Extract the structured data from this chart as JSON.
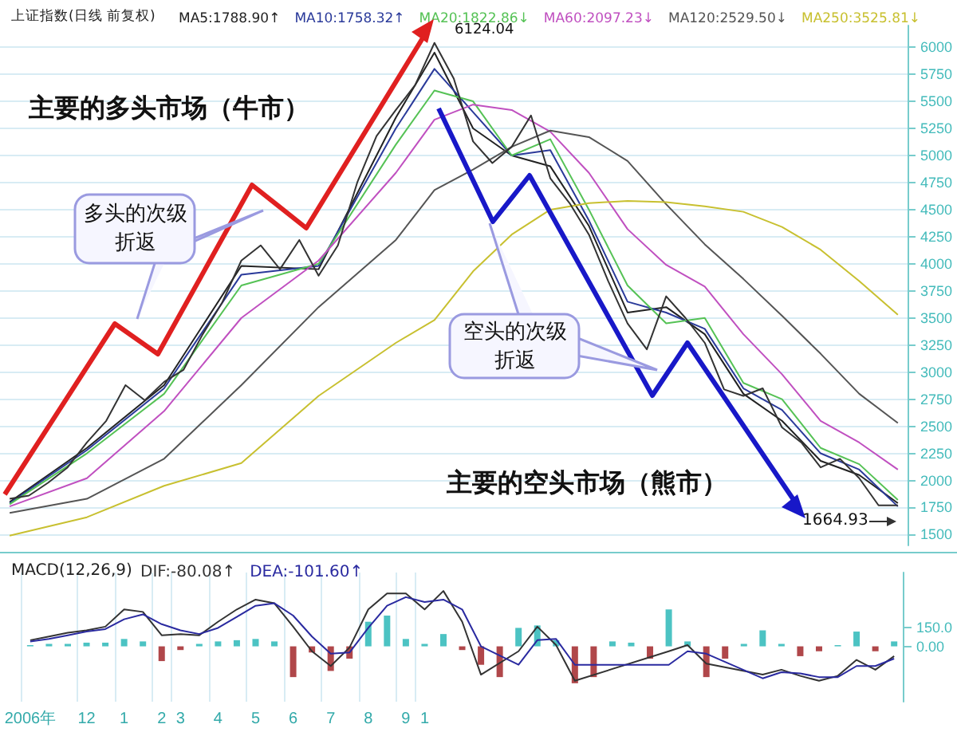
{
  "chart_data": [
    {
      "type": "line",
      "title": "上证指数(日线 前复权)",
      "categories": [
        null,
        null,
        null,
        null,
        null,
        null,
        null,
        null,
        null,
        null,
        null,
        null,
        null,
        null,
        null,
        null,
        null,
        null,
        null,
        null,
        null,
        null,
        null,
        null,
        null,
        null,
        null,
        null,
        null,
        null,
        null,
        null,
        null,
        null,
        null,
        null,
        null,
        null,
        null,
        null,
        null,
        null,
        null,
        null,
        null,
        null,
        null
      ],
      "series": [
        {
          "color": "#333333",
          "values": [
            1830,
            1860,
            1980,
            2120,
            2350,
            2550,
            2880,
            2740,
            2910,
            3020,
            3350,
            3640,
            4030,
            4170,
            3950,
            4220,
            3890,
            4170,
            4750,
            5180,
            5420,
            5650,
            6040,
            5710,
            5130,
            4930,
            5080,
            5370,
            4790,
            4560,
            4270,
            3840,
            3450,
            3210,
            3700,
            3500,
            3270,
            2840,
            2780,
            2850,
            2490,
            2350,
            2120,
            2200,
            2020,
            1770,
            1770
          ]
        },
        {
          "name": "MA5:1788.90↑",
          "color": "#222222",
          "values": [
            1800,
            null,
            null,
            null,
            2300,
            null,
            null,
            null,
            2880,
            null,
            null,
            null,
            3980,
            null,
            null,
            null,
            3950,
            null,
            null,
            null,
            5350,
            null,
            5950,
            null,
            5250,
            null,
            5000,
            null,
            4900,
            null,
            4350,
            null,
            3550,
            null,
            3600,
            null,
            3350,
            null,
            2800,
            null,
            2550,
            null,
            2180,
            null,
            2050,
            null,
            1790
          ]
        },
        {
          "name": "MA10:1758.32↑",
          "color": "#2a3a9a",
          "values": [
            1790,
            null,
            null,
            null,
            2280,
            null,
            null,
            null,
            2850,
            null,
            null,
            null,
            3900,
            null,
            null,
            null,
            3980,
            null,
            null,
            null,
            5250,
            null,
            5800,
            null,
            5400,
            null,
            5000,
            null,
            5050,
            null,
            4400,
            null,
            3650,
            null,
            3550,
            null,
            3400,
            null,
            2850,
            null,
            2650,
            null,
            2250,
            null,
            2100,
            null,
            1760
          ]
        },
        {
          "name": "MA20:1822.86↓",
          "color": "#55c255",
          "values": [
            1780,
            null,
            null,
            null,
            2250,
            null,
            null,
            null,
            2800,
            null,
            null,
            null,
            3800,
            null,
            null,
            null,
            4000,
            null,
            null,
            null,
            5100,
            null,
            5600,
            null,
            5500,
            null,
            5000,
            null,
            5150,
            null,
            4500,
            null,
            3800,
            null,
            3450,
            null,
            3500,
            null,
            2900,
            null,
            2750,
            null,
            2300,
            null,
            2150,
            null,
            1820
          ]
        },
        {
          "name": "MA60:2097.23↓",
          "color": "#c050c0",
          "values": [
            1760,
            null,
            null,
            null,
            2020,
            null,
            null,
            null,
            2640,
            null,
            null,
            null,
            3500,
            null,
            null,
            null,
            4030,
            null,
            null,
            null,
            4840,
            null,
            5330,
            null,
            5470,
            null,
            5420,
            null,
            5220,
            null,
            4840,
            null,
            4320,
            null,
            3990,
            null,
            3790,
            null,
            3350,
            null,
            2980,
            null,
            2550,
            null,
            2350,
            null,
            2100
          ]
        },
        {
          "name": "MA120:2529.50↓",
          "color": "#555555",
          "values": [
            1700,
            null,
            null,
            null,
            1830,
            null,
            null,
            null,
            2200,
            null,
            null,
            null,
            2880,
            null,
            null,
            null,
            3600,
            null,
            null,
            null,
            4220,
            null,
            4680,
            null,
            4870,
            null,
            5080,
            null,
            5230,
            null,
            5170,
            null,
            4950,
            null,
            4550,
            null,
            4180,
            null,
            3860,
            null,
            3520,
            null,
            3170,
            null,
            2800,
            null,
            2530
          ]
        },
        {
          "name": "MA250:3525.81↓",
          "color": "#c8c030",
          "values": [
            1490,
            null,
            null,
            null,
            1660,
            null,
            null,
            null,
            1950,
            null,
            null,
            null,
            2160,
            null,
            null,
            null,
            2780,
            null,
            null,
            null,
            3270,
            null,
            3480,
            null,
            3930,
            null,
            4270,
            null,
            4500,
            null,
            4560,
            null,
            4580,
            null,
            4570,
            null,
            4530,
            null,
            4480,
            null,
            4340,
            null,
            4130,
            null,
            3840,
            null,
            3530
          ]
        }
      ],
      "ylim": [
        1400,
        6200
      ],
      "yticks": [
        1500,
        1750,
        2000,
        2250,
        2500,
        2750,
        3000,
        3250,
        3500,
        3750,
        4000,
        4250,
        4500,
        4750,
        5000,
        5250,
        5500,
        5750,
        6000
      ],
      "grid": true,
      "legend": "top",
      "marker": "none",
      "annotations": [
        "主要的多头市场（牛市）",
        "多头的次级折返",
        "空头的次级折返",
        "主要的空头市场（熊市）",
        "6124.04",
        "1664.93"
      ]
    },
    {
      "type": "line",
      "title": "MACD(12,26,9)",
      "categories": [
        "2006年",
        null,
        null,
        "12",
        null,
        "1",
        null,
        "2",
        "3",
        null,
        "4",
        null,
        "5",
        null,
        "6",
        null,
        "7",
        null,
        "8",
        null,
        "9",
        "1",
        null,
        null,
        null,
        null,
        null,
        null,
        null,
        null,
        null,
        null,
        null,
        null,
        null,
        null,
        null,
        null,
        null,
        null,
        null,
        null,
        null,
        null,
        null,
        null,
        null
      ],
      "series": [
        {
          "type": "bar",
          "colors": [
            "#4cc3c3",
            "#4cc3c3",
            "#4cc3c3",
            "#4cc3c3",
            "#4cc3c3",
            "#4cc3c3",
            "#4cc3c3",
            "#b0474a",
            "#b0474a",
            "#4cc3c3",
            "#4cc3c3",
            "#4cc3c3",
            "#4cc3c3",
            "#4cc3c3",
            "#b0474a",
            "#b0474a",
            "#b0474a",
            "#b0474a",
            "#4cc3c3",
            "#4cc3c3",
            "#4cc3c3",
            "#4cc3c3",
            "#4cc3c3",
            "#b0474a",
            "#b0474a",
            "#b0474a",
            "#4cc3c3",
            "#4cc3c3",
            "#4cc3c3",
            "#b0474a",
            "#b0474a",
            "#4cc3c3",
            "#4cc3c3",
            "#b0474a",
            "#4cc3c3",
            "#4cc3c3",
            "#b0474a",
            "#b0474a",
            "#4cc3c3",
            "#4cc3c3",
            "#4cc3c3",
            "#b0474a",
            "#b0474a",
            "#4cc3c3",
            "#4cc3c3",
            "#b0474a",
            "#4cc3c3"
          ],
          "values": [
            10,
            20,
            20,
            30,
            30,
            60,
            40,
            -120,
            -30,
            20,
            40,
            50,
            60,
            40,
            -250,
            -50,
            -200,
            -100,
            200,
            250,
            60,
            20,
            100,
            -30,
            -150,
            -250,
            150,
            170,
            50,
            -300,
            -250,
            40,
            30,
            -100,
            300,
            40,
            -250,
            -100,
            20,
            130,
            20,
            -80,
            -40,
            10,
            120,
            -40,
            40
          ]
        },
        {
          "name": "DIF:-80.08↑",
          "color": "#333333",
          "values": [
            50,
            80,
            110,
            130,
            160,
            300,
            280,
            90,
            100,
            90,
            200,
            300,
            380,
            350,
            160,
            -40,
            -160,
            -10,
            300,
            430,
            430,
            300,
            450,
            200,
            -230,
            null,
            -40,
            160,
            10,
            -280,
            null,
            null,
            null,
            null,
            -40,
            10,
            -140,
            null,
            null,
            -230,
            -190,
            -240,
            -280,
            -240,
            -110,
            -190,
            -80
          ]
        },
        {
          "name": "DEA:-101.60↑",
          "color": "#2a2aa0",
          "values": [
            40,
            60,
            90,
            120,
            140,
            220,
            260,
            180,
            130,
            100,
            150,
            240,
            330,
            350,
            250,
            80,
            -60,
            -50,
            150,
            330,
            400,
            360,
            380,
            300,
            0,
            null,
            -150,
            50,
            60,
            -150,
            null,
            null,
            null,
            null,
            -150,
            -40,
            -60,
            null,
            null,
            -260,
            -210,
            -220,
            -250,
            -250,
            -160,
            -160,
            -100
          ]
        }
      ],
      "ylim": [
        -450,
        600
      ],
      "yticks": [
        {
          "value": 0,
          "label": "0.00"
        },
        {
          "value": 150,
          "label": "150.0"
        }
      ],
      "grid": "x",
      "legend": "top left",
      "marker": "none"
    }
  ]
}
